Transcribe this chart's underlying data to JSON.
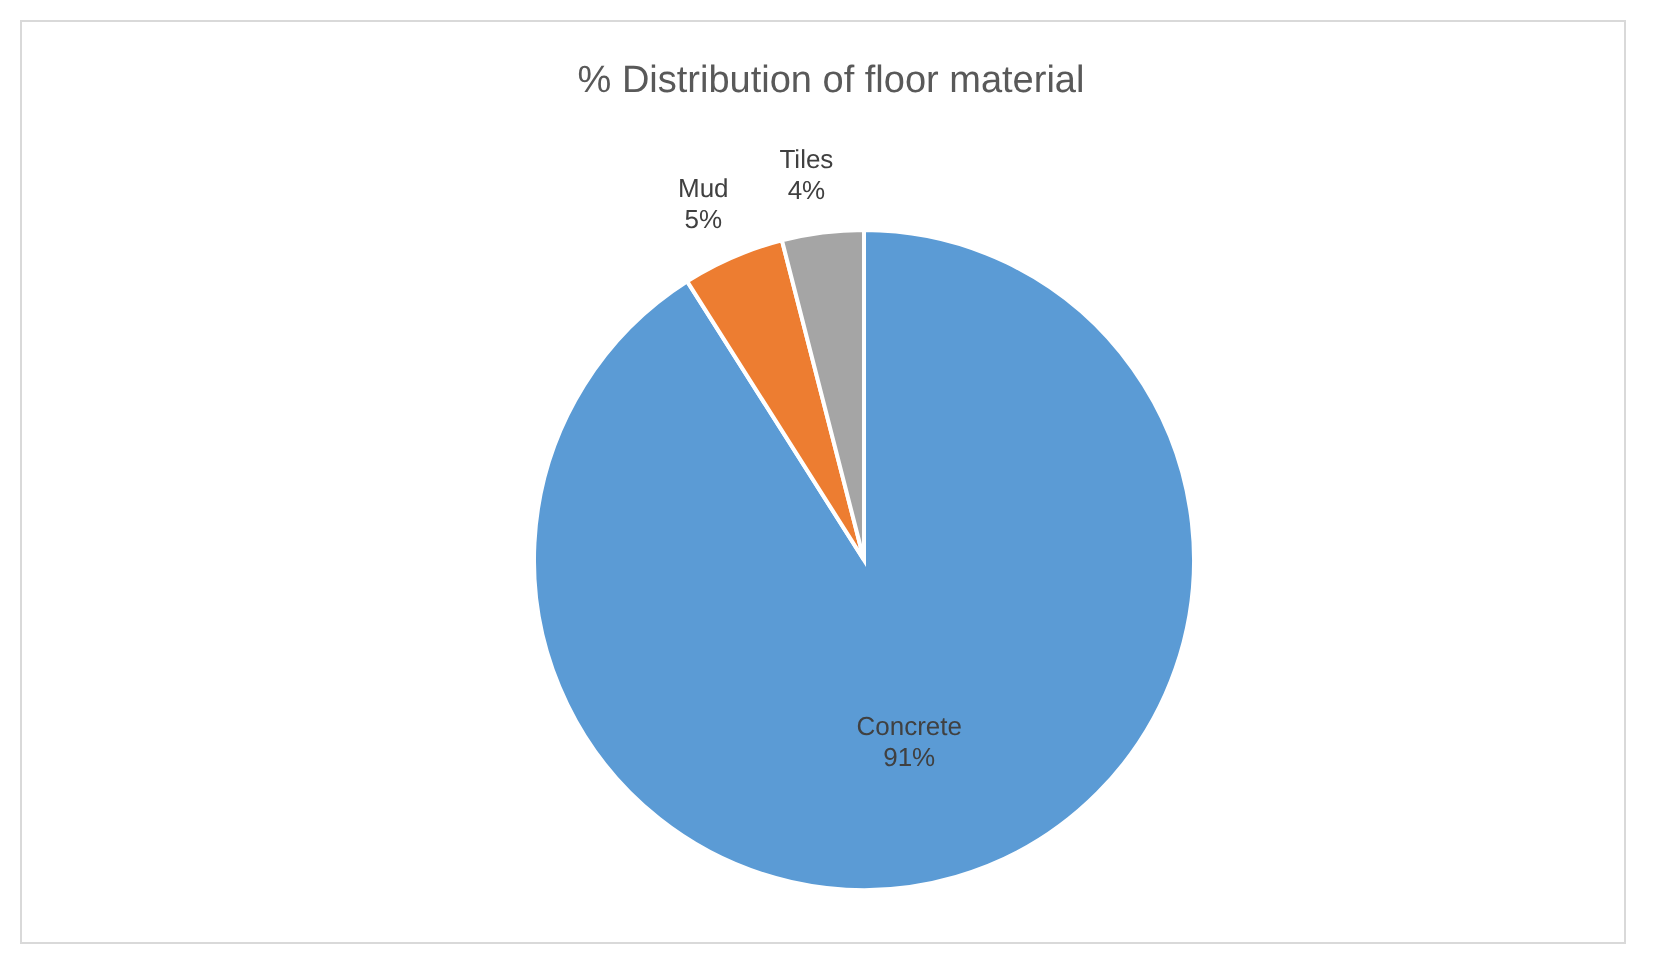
{
  "chart_data": {
    "type": "pie",
    "title": "% Distribution of floor material",
    "categories": [
      "Concrete",
      "Mud",
      "Tiles"
    ],
    "values": [
      91,
      5,
      4
    ],
    "colors": [
      "#5b9bd5",
      "#ed7d31",
      "#a5a5a5"
    ],
    "value_labels": [
      "91%",
      "5%",
      "4%"
    ]
  }
}
